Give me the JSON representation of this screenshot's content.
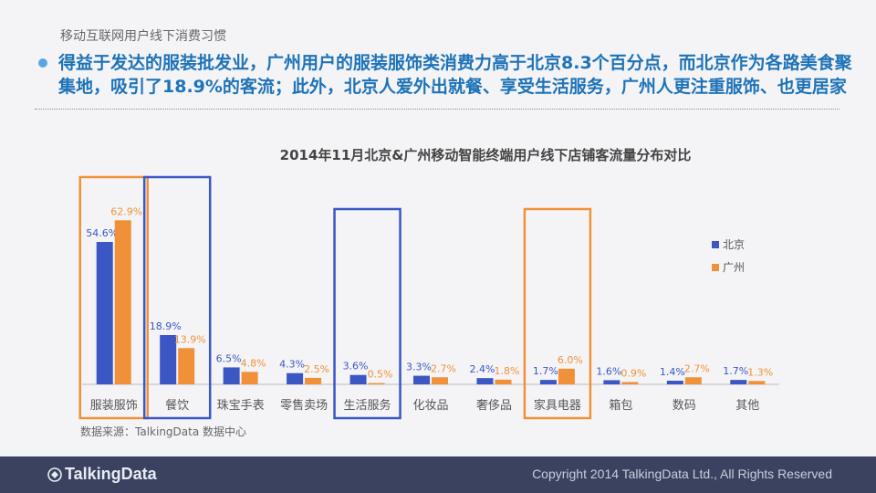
{
  "header": {
    "section_label": "移动互联网用户线下消费习惯",
    "headline": "得益于发达的服装批发业，广州用户的服装服饰类消费力高于北京8.3个百分点，而北京作为各路美食聚集地，吸引了18.9%的客流；此外，北京人爱外出就餐、享受生活服务，广州人更注重服饰、也更居家"
  },
  "chart_data": {
    "type": "bar",
    "title": "2014年11月北京&广州移动智能终端用户线下店铺客流量分布对比",
    "xlabel": "",
    "ylabel": "",
    "ylim": [
      0,
      70
    ],
    "grid": false,
    "legend_position": "right",
    "categories": [
      "服装服饰",
      "餐饮",
      "珠宝手表",
      "零售卖场",
      "生活服务",
      "化妆品",
      "奢侈品",
      "家具电器",
      "箱包",
      "数码",
      "其他"
    ],
    "series": [
      {
        "name": "北京",
        "color": "#3a57c4",
        "values": [
          54.6,
          18.9,
          6.5,
          4.3,
          3.6,
          3.3,
          2.4,
          1.7,
          1.6,
          1.4,
          1.7
        ]
      },
      {
        "name": "广州",
        "color": "#f0913a",
        "values": [
          62.9,
          13.9,
          4.8,
          2.5,
          0.5,
          2.7,
          1.8,
          6.0,
          0.9,
          2.7,
          1.3
        ]
      }
    ],
    "highlights": [
      {
        "category": "服装服饰",
        "color": "#f0913a"
      },
      {
        "category": "餐饮",
        "color": "#3a57c4"
      },
      {
        "category": "生活服务",
        "color": "#3a57c4"
      },
      {
        "category": "家具电器",
        "color": "#f0913a"
      }
    ]
  },
  "source": "数据来源：TalkingData 数据中心",
  "footer": {
    "logo": "TalkingData",
    "copyright": "Copyright 2014 TalkingData Ltd., All Rights Reserved"
  },
  "icons": [
    "talkingdata-logo-icon"
  ]
}
